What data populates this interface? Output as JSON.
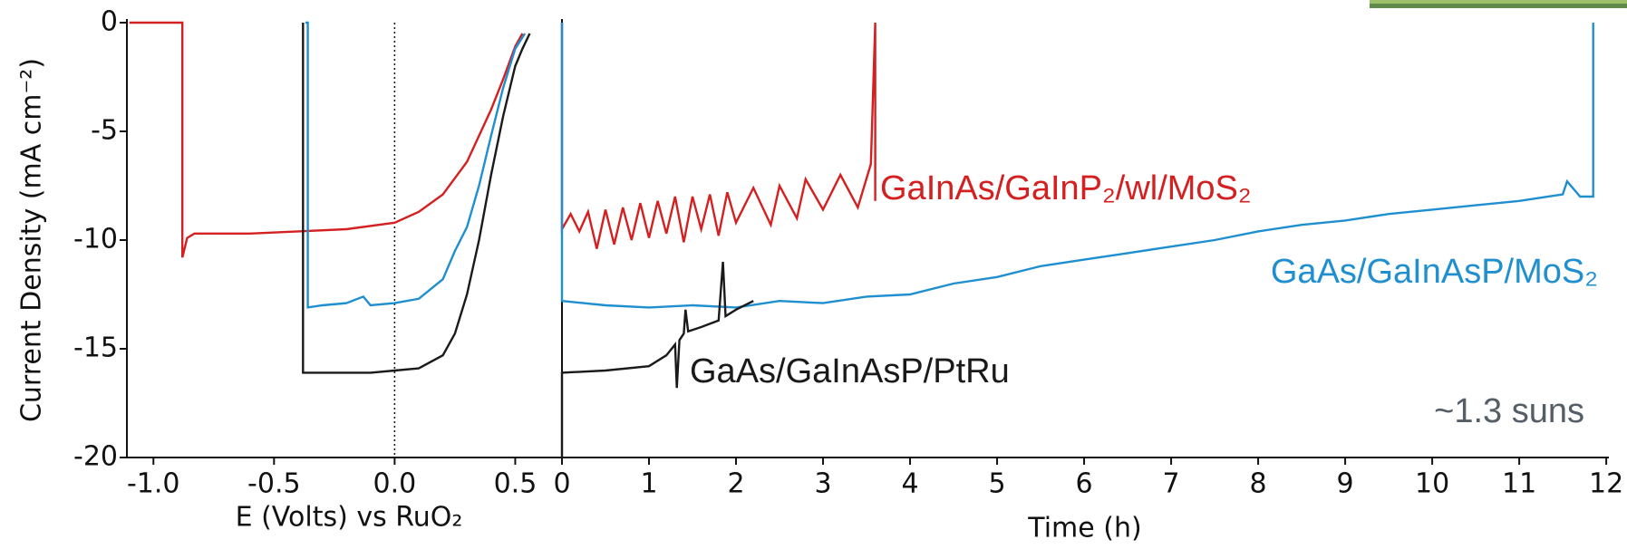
{
  "chart_data": [
    {
      "type": "line",
      "ylabel": "Current Density (mA cm⁻²)",
      "xlabel": "E (Volts) vs RuO₂",
      "xlim": [
        -1.11,
        0.69
      ],
      "ylim": [
        -20,
        0
      ],
      "xticks": [
        {
          "value": -1,
          "label": "-1.0"
        },
        -0.5,
        {
          "value": 0,
          "label": "0.0"
        },
        0.5
      ],
      "yticks": [
        0,
        -5,
        -10,
        -15,
        -20
      ],
      "series": [
        {
          "color": "#d42020",
          "x": [
            -1.1,
            -0.88,
            -0.88,
            -0.86,
            -0.83,
            -0.6,
            -0.4,
            -0.2,
            0,
            0.1,
            0.2,
            0.3,
            0.4,
            0.45,
            0.5,
            0.53
          ],
          "values": [
            0,
            0,
            -10.8,
            -9.9,
            -9.7,
            -9.7,
            -9.6,
            -9.5,
            -9.2,
            -8.7,
            -7.9,
            -6.4,
            -4.0,
            -2.6,
            -1.1,
            -0.5
          ]
        },
        {
          "color": "#1f8fd0",
          "x": [
            -0.37,
            -0.36,
            -0.36,
            -0.3,
            -0.2,
            -0.13,
            -0.1,
            0,
            0.1,
            0.2,
            0.25,
            0.3,
            0.35,
            0.4,
            0.45,
            0.5,
            0.54
          ],
          "values": [
            0,
            0,
            -13.1,
            -13.0,
            -12.9,
            -12.6,
            -13.0,
            -12.9,
            -12.7,
            -11.8,
            -10.5,
            -9.4,
            -7.5,
            -5.2,
            -3.0,
            -1.2,
            -0.5
          ]
        },
        {
          "color": "#1a1a1a",
          "x": [
            -0.38,
            -0.38,
            -0.3,
            -0.1,
            0,
            0.1,
            0.2,
            0.25,
            0.3,
            0.35,
            0.4,
            0.45,
            0.5,
            0.53,
            0.56
          ],
          "values": [
            0,
            -16.1,
            -16.1,
            -16.1,
            -16.0,
            -15.9,
            -15.3,
            -14.3,
            -12.5,
            -10,
            -7,
            -4.3,
            -2,
            -1.2,
            -0.5
          ]
        }
      ]
    },
    {
      "type": "line",
      "xlabel": "Time (h)",
      "annotation": "~1.3 suns",
      "xlim": [
        0,
        12.03
      ],
      "ylim": [
        -20,
        0
      ],
      "xticks": [
        0,
        1,
        2,
        3,
        4,
        5,
        6,
        7,
        8,
        9,
        10,
        11,
        12
      ],
      "series": [
        {
          "name": "GaInAs/GaInP₂/wl/MoS₂",
          "color": "#d42020",
          "x": [
            0,
            0,
            0.1,
            0.2,
            0.3,
            0.4,
            0.5,
            0.6,
            0.7,
            0.8,
            0.9,
            1.0,
            1.1,
            1.2,
            1.3,
            1.4,
            1.5,
            1.6,
            1.7,
            1.8,
            1.9,
            2.0,
            2.2,
            2.4,
            2.5,
            2.7,
            2.8,
            3.0,
            3.2,
            3.4,
            3.55,
            3.6,
            3.6
          ],
          "values": [
            0,
            -9.5,
            -8.8,
            -9.6,
            -8.7,
            -10.4,
            -8.6,
            -10.2,
            -8.5,
            -10.0,
            -8.3,
            -9.9,
            -8.2,
            -9.7,
            -8.0,
            -10.1,
            -8.0,
            -9.5,
            -7.9,
            -9.8,
            -7.8,
            -9.2,
            -7.6,
            -9.3,
            -7.5,
            -9.0,
            -7.2,
            -8.6,
            -7.0,
            -8.5,
            -6.5,
            0,
            -8.2
          ]
        },
        {
          "name": "GaAs/GaInAsP/MoS₂",
          "color": "#1f8fd0",
          "x": [
            0,
            0,
            0.5,
            1,
            1.5,
            2,
            2.5,
            3,
            3.5,
            4,
            4.5,
            5,
            5.5,
            6,
            6.5,
            7,
            7.5,
            8,
            8.5,
            9,
            9.5,
            10,
            10.5,
            11,
            11.5,
            11.55,
            11.7,
            11.85,
            11.85
          ],
          "values": [
            0,
            -12.8,
            -13,
            -13.1,
            -13.0,
            -13.1,
            -12.8,
            -12.9,
            -12.6,
            -12.5,
            -12.0,
            -11.7,
            -11.2,
            -10.9,
            -10.6,
            -10.3,
            -10.0,
            -9.6,
            -9.3,
            -9.1,
            -8.8,
            -8.6,
            -8.4,
            -8.2,
            -7.9,
            -7.3,
            -8.0,
            -8.0,
            0
          ]
        },
        {
          "name": "GaAs/GaInAsP/PtRu",
          "color": "#1a1a1a",
          "x": [
            0,
            0,
            0.5,
            1.0,
            1.2,
            1.3,
            1.32,
            1.35,
            1.4,
            1.42,
            1.45,
            1.6,
            1.8,
            1.85,
            1.88,
            2.0,
            2.2
          ],
          "values": [
            -20,
            -16.1,
            -16.0,
            -15.8,
            -15.3,
            -14.8,
            -16.8,
            -14.6,
            -14.3,
            -13.2,
            -14.2,
            -14.0,
            -13.7,
            -11.0,
            -13.5,
            -13.2,
            -12.8
          ]
        }
      ]
    }
  ]
}
